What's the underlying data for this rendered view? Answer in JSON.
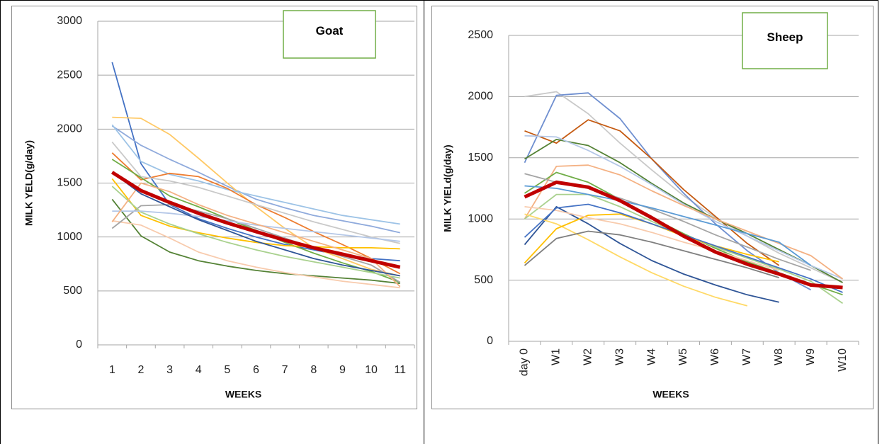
{
  "chart_data": [
    {
      "type": "line",
      "title": "Goat",
      "xlabel": "WEEKS",
      "ylabel": "MILK YELD(g/day)",
      "categories": [
        "1",
        "2",
        "3",
        "4",
        "5",
        "6",
        "7",
        "8",
        "9",
        "10",
        "11"
      ],
      "ylim": [
        0,
        3000
      ],
      "yticks": [
        0,
        500,
        1000,
        1500,
        2000,
        2500,
        3000
      ],
      "grid": true,
      "xtick_rotation": 0,
      "series": [
        {
          "color": "#4472c4",
          "linewidth": 1.8,
          "values": [
            2620,
            1680,
            1300,
            1170,
            1080,
            1000,
            930,
            880,
            830,
            800,
            780
          ]
        },
        {
          "color": "#8faadc",
          "linewidth": 1.8,
          "values": [
            2030,
            1850,
            1720,
            1600,
            1470,
            1350,
            1270,
            1200,
            1150,
            1100,
            1040
          ]
        },
        {
          "color": "#ffc966",
          "linewidth": 1.8,
          "values": [
            2110,
            2100,
            1950,
            1730,
            1500,
            1280,
            1080,
            900,
            800,
            700,
            640
          ]
        },
        {
          "color": "#9dc3e6",
          "linewidth": 1.8,
          "values": [
            2040,
            1700,
            1580,
            1520,
            1440,
            1380,
            1320,
            1260,
            1200,
            1160,
            1120
          ]
        },
        {
          "color": "#ed7d31",
          "linewidth": 1.8,
          "values": [
            1780,
            1530,
            1590,
            1560,
            1450,
            1300,
            1180,
            1050,
            930,
            800,
            660
          ]
        },
        {
          "color": "#c9c9c9",
          "linewidth": 1.8,
          "values": [
            1880,
            1560,
            1520,
            1460,
            1380,
            1300,
            1220,
            1140,
            1070,
            1000,
            940
          ]
        },
        {
          "color": "#70ad47",
          "linewidth": 1.8,
          "values": [
            1720,
            1550,
            1380,
            1280,
            1170,
            1060,
            950,
            850,
            760,
            680,
            580
          ]
        },
        {
          "color": "#548235",
          "linewidth": 1.8,
          "values": [
            1350,
            1010,
            860,
            780,
            730,
            690,
            660,
            640,
            620,
            600,
            570
          ]
        },
        {
          "color": "#ffc000",
          "linewidth": 1.8,
          "values": [
            1540,
            1200,
            1100,
            1040,
            990,
            950,
            920,
            910,
            900,
            900,
            890
          ]
        },
        {
          "color": "#f8cbad",
          "linewidth": 1.8,
          "values": [
            1150,
            1110,
            990,
            860,
            780,
            720,
            670,
            630,
            590,
            560,
            530
          ]
        },
        {
          "color": "#a5a5a5",
          "linewidth": 1.8,
          "values": [
            1080,
            1290,
            1300,
            1240,
            1170,
            1080,
            990,
            900,
            820,
            740,
            580
          ]
        },
        {
          "color": "#a9d18e",
          "linewidth": 1.8,
          "values": [
            1470,
            1230,
            1120,
            1030,
            950,
            880,
            820,
            770,
            720,
            670,
            620
          ]
        },
        {
          "color": "#b4c7e7",
          "linewidth": 1.8,
          "values": [
            1240,
            1240,
            1220,
            1190,
            1150,
            1110,
            1080,
            1050,
            1020,
            990,
            960
          ]
        },
        {
          "color": "#f4b183",
          "linewidth": 1.8,
          "values": [
            1140,
            1500,
            1420,
            1300,
            1200,
            1120,
            1040,
            960,
            880,
            800,
            540
          ]
        },
        {
          "color": "#2f5597",
          "linewidth": 1.8,
          "values": [
            1600,
            1400,
            1280,
            1160,
            1060,
            960,
            880,
            800,
            740,
            690,
            640
          ]
        },
        {
          "color": "#c00000",
          "linewidth": 5,
          "values": [
            1600,
            1430,
            1320,
            1220,
            1130,
            1050,
            970,
            900,
            840,
            780,
            720
          ]
        }
      ]
    },
    {
      "type": "line",
      "title": "Sheep",
      "xlabel": "WEEKS",
      "ylabel": "MILK YIELd(g/day)",
      "categories": [
        "day 0",
        "W1",
        "W2",
        "W3",
        "W4",
        "W5",
        "W6",
        "W7",
        "W8",
        "W9",
        "W10"
      ],
      "ylim": [
        0,
        2500
      ],
      "yticks": [
        0,
        500,
        1000,
        1500,
        2000,
        2500
      ],
      "grid": true,
      "xtick_rotation": -90,
      "series": [
        {
          "color": "#c9c9c9",
          "linewidth": 1.8,
          "values": [
            2000,
            2040,
            1860,
            1620,
            1400,
            1190,
            1010,
            860,
            720,
            600,
            480
          ]
        },
        {
          "color": "#6f8fd0",
          "linewidth": 1.8,
          "values": [
            1460,
            2010,
            2030,
            1820,
            1490,
            1210,
            960,
            740,
            560,
            420,
            null
          ]
        },
        {
          "color": "#c55a11",
          "linewidth": 1.8,
          "values": [
            1720,
            1620,
            1810,
            1720,
            1490,
            1240,
            1020,
            800,
            620,
            null,
            null
          ]
        },
        {
          "color": "#548235",
          "linewidth": 1.8,
          "values": [
            1490,
            1650,
            1600,
            1460,
            1290,
            1130,
            1000,
            880,
            750,
            620,
            480
          ]
        },
        {
          "color": "#b4c7e7",
          "linewidth": 1.8,
          "values": [
            1680,
            1670,
            1560,
            1430,
            1280,
            1120,
            980,
            860,
            740,
            620,
            510
          ]
        },
        {
          "color": "#f4b183",
          "linewidth": 1.8,
          "values": [
            1000,
            1430,
            1440,
            1360,
            1230,
            1110,
            1000,
            900,
            800,
            700,
            510
          ]
        },
        {
          "color": "#70ad47",
          "linewidth": 1.8,
          "values": [
            1210,
            1380,
            1300,
            1160,
            1010,
            880,
            760,
            650,
            560,
            470,
            380
          ]
        },
        {
          "color": "#a9d18e",
          "linewidth": 1.8,
          "values": [
            1000,
            1200,
            1200,
            1100,
            980,
            870,
            770,
            680,
            590,
            490,
            310
          ]
        },
        {
          "color": "#2f5597",
          "linewidth": 1.8,
          "values": [
            790,
            1100,
            960,
            800,
            660,
            550,
            460,
            380,
            320,
            null,
            null
          ]
        },
        {
          "color": "#ffd966",
          "linewidth": 1.8,
          "values": [
            1040,
            960,
            830,
            690,
            560,
            450,
            360,
            290,
            null,
            null,
            null
          ]
        },
        {
          "color": "#ffc000",
          "linewidth": 1.8,
          "values": [
            640,
            920,
            1030,
            1040,
            960,
            860,
            780,
            710,
            650,
            null,
            null
          ]
        },
        {
          "color": "#7f7f7f",
          "linewidth": 1.8,
          "values": [
            620,
            840,
            900,
            870,
            810,
            740,
            670,
            600,
            520,
            null,
            null
          ]
        },
        {
          "color": "#f8cbad",
          "linewidth": 1.8,
          "values": [
            1100,
            1070,
            1010,
            960,
            890,
            810,
            740,
            660,
            580,
            null,
            null
          ]
        },
        {
          "color": "#4472c4",
          "linewidth": 1.8,
          "values": [
            850,
            1090,
            1120,
            1050,
            960,
            870,
            780,
            690,
            600,
            510,
            400
          ]
        },
        {
          "color": "#a5a5a5",
          "linewidth": 1.8,
          "values": [
            1370,
            1300,
            1250,
            1170,
            1080,
            980,
            870,
            770,
            670,
            580,
            null
          ]
        },
        {
          "color": "#5b9bd5",
          "linewidth": 1.8,
          "values": [
            1270,
            1250,
            1200,
            1150,
            1090,
            1020,
            950,
            880,
            810,
            620,
            null
          ]
        },
        {
          "color": "#c00000",
          "linewidth": 5,
          "values": [
            1180,
            1300,
            1260,
            1150,
            1010,
            860,
            730,
            630,
            550,
            460,
            440
          ]
        }
      ]
    }
  ]
}
